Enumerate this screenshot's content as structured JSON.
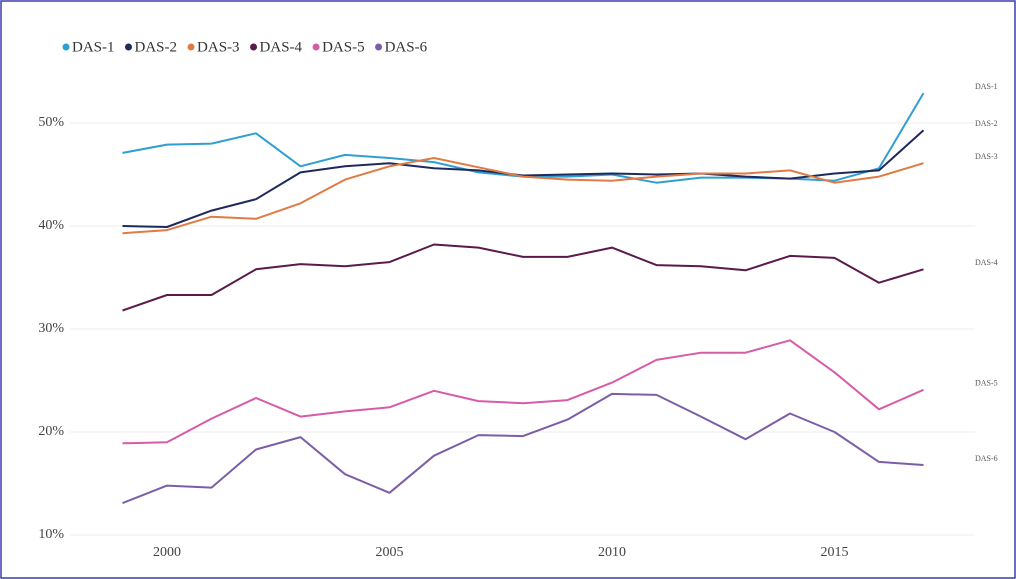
{
  "chart_data": {
    "type": "line",
    "x": [
      1999,
      2000,
      2001,
      2002,
      2003,
      2004,
      2005,
      2006,
      2007,
      2008,
      2009,
      2010,
      2011,
      2012,
      2013,
      2014,
      2015,
      2016,
      2017
    ],
    "xlim": [
      1998,
      2018
    ],
    "xticks": [
      2000,
      2005,
      2010,
      2015
    ],
    "ylim": [
      10,
      55
    ],
    "yticks": [
      {
        "value": 10,
        "label": "10%"
      },
      {
        "value": 20,
        "label": "20%"
      },
      {
        "value": 30,
        "label": "30%"
      },
      {
        "value": 40,
        "label": "40%"
      },
      {
        "value": 50,
        "label": "50%"
      }
    ],
    "grid": true,
    "legend": "top-left",
    "series": [
      {
        "name": "DAS-1",
        "color": "#2e9fd0",
        "values": [
          47.1,
          47.9,
          48.0,
          49.0,
          45.8,
          46.9,
          46.6,
          46.2,
          45.2,
          44.8,
          44.8,
          45.0,
          44.2,
          44.7,
          44.7,
          44.6,
          44.4,
          45.6,
          52.9
        ]
      },
      {
        "name": "DAS-2",
        "color": "#1f2a5c",
        "values": [
          40.0,
          39.9,
          41.5,
          42.6,
          45.2,
          45.8,
          46.1,
          45.6,
          45.4,
          44.9,
          45.0,
          45.1,
          45.0,
          45.1,
          44.8,
          44.6,
          45.1,
          45.4,
          49.3
        ]
      },
      {
        "name": "DAS-3",
        "color": "#e07b45",
        "values": [
          39.3,
          39.6,
          40.9,
          40.7,
          42.2,
          44.5,
          45.8,
          46.6,
          45.7,
          44.8,
          44.5,
          44.4,
          44.8,
          45.1,
          45.1,
          45.4,
          44.2,
          44.8,
          46.1
        ]
      },
      {
        "name": "DAS-4",
        "color": "#5a1a4a",
        "values": [
          31.8,
          33.3,
          33.3,
          35.8,
          36.3,
          36.1,
          36.5,
          38.2,
          37.9,
          37.0,
          37.0,
          37.9,
          36.2,
          36.1,
          35.7,
          37.1,
          36.9,
          34.5,
          35.8
        ]
      },
      {
        "name": "DAS-5",
        "color": "#d65ba8",
        "values": [
          18.9,
          19.0,
          21.3,
          23.3,
          21.5,
          22.0,
          22.4,
          24.0,
          23.0,
          22.8,
          23.1,
          24.8,
          27.0,
          27.7,
          27.7,
          28.9,
          25.8,
          22.2,
          24.1
        ]
      },
      {
        "name": "DAS-6",
        "color": "#7b5ea7",
        "values": [
          13.1,
          14.8,
          14.6,
          18.3,
          19.5,
          15.9,
          14.1,
          17.7,
          19.7,
          19.6,
          21.2,
          23.7,
          23.6,
          21.5,
          19.3,
          21.8,
          20.0,
          17.1,
          16.8
        ]
      }
    ]
  }
}
